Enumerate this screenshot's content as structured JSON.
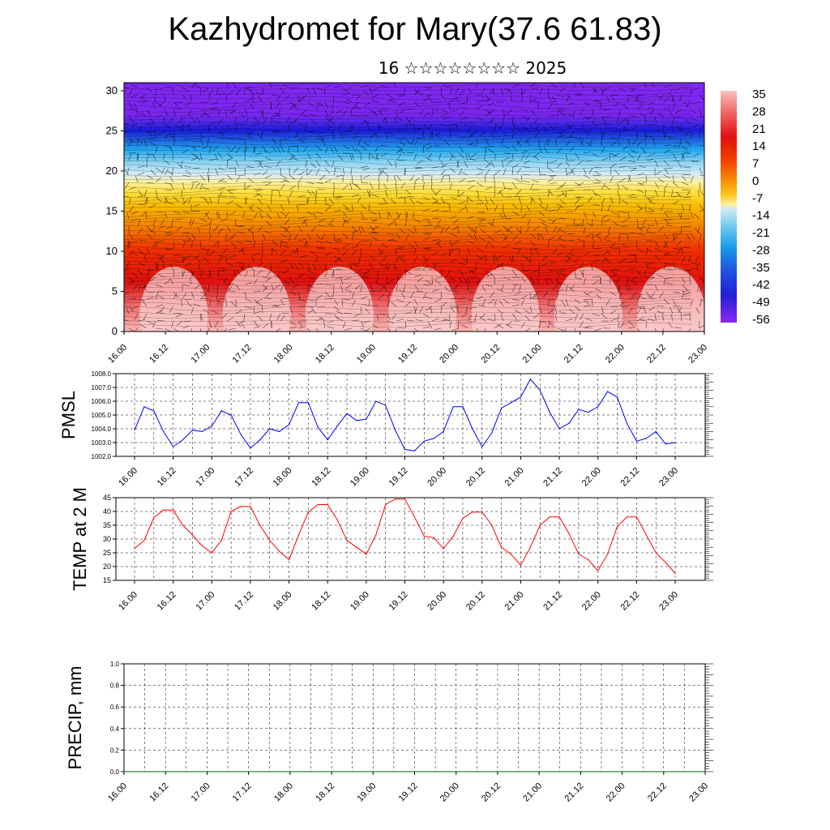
{
  "title": "Kazhydromet for Mary(37.6 61.83)",
  "subtitle": "16 ☆☆☆☆☆☆☆☆ 2025",
  "time_labels": [
    "16.00",
    "16.12",
    "17.00",
    "17.12",
    "18.00",
    "18.12",
    "19.00",
    "19.12",
    "20.00",
    "20.12",
    "21.00",
    "21.12",
    "22.00",
    "22.12",
    "23.00"
  ],
  "colors": {
    "pmsl_line": "#0000ff",
    "temp_line": "#ff0000",
    "precip_line": "#006400"
  },
  "chart_data": [
    {
      "type": "heatmap",
      "title": "",
      "xlabel": "",
      "ylabel": "",
      "x_ticks": [
        "16.00",
        "16.12",
        "17.00",
        "17.12",
        "18.00",
        "18.12",
        "19.00",
        "19.12",
        "20.00",
        "20.12",
        "21.00",
        "21.12",
        "22.00",
        "22.12",
        "23.00"
      ],
      "y_ticks": [
        0,
        5,
        10,
        15,
        20,
        25,
        30
      ],
      "ylim": [
        0,
        30
      ],
      "colorbar": {
        "labels": [
          "35",
          "28",
          "21",
          "14",
          "7",
          "0",
          "-7",
          "-14",
          "-21",
          "-28",
          "-35",
          "-42",
          "-49",
          "-56"
        ],
        "range": [
          -60,
          40
        ]
      },
      "overlay": "wind barbs"
    },
    {
      "type": "line",
      "ylabel": "PMSL",
      "y_ticks": [
        "1002.0",
        "1003.0",
        "1004.0",
        "1005.0",
        "1006.0",
        "1007.0",
        "1008.0"
      ],
      "ylim": [
        1002,
        1008
      ],
      "series": [
        {
          "values": [
            1003.9,
            1005.6,
            1005.3,
            1003.8,
            1002.7,
            1003.2,
            1003.9,
            1003.8,
            1004.2,
            1005.3,
            1005.0,
            1003.6,
            1002.6,
            1003.2,
            1004.0,
            1003.8,
            1004.3,
            1005.9,
            1005.9,
            1004.1,
            1003.2,
            1004.2,
            1005.1,
            1004.6,
            1004.7,
            1006.0,
            1005.7,
            1003.9,
            1002.5,
            1002.4,
            1003.1,
            1003.3,
            1003.8,
            1005.6,
            1005.6,
            1004.0,
            1002.7,
            1003.7,
            1005.5,
            1005.9,
            1006.3,
            1007.6,
            1006.8,
            1005.2,
            1004.0,
            1004.4,
            1005.4,
            1005.2,
            1005.6,
            1006.7,
            1006.3,
            1004.4,
            1003.1,
            1003.3,
            1003.8,
            1002.9,
            1003.0
          ]
        }
      ]
    },
    {
      "type": "line",
      "ylabel": "TEMP at 2 M",
      "y_ticks": [
        "15",
        "20",
        "25",
        "30",
        "35",
        "40",
        "45"
      ],
      "ylim": [
        15,
        45
      ],
      "series": [
        {
          "values": [
            26.5,
            29.5,
            37.8,
            40.5,
            40.5,
            35.0,
            31.5,
            27.5,
            25.0,
            29.5,
            40.0,
            41.8,
            41.8,
            35.0,
            29.5,
            25.5,
            22.5,
            31.5,
            39.8,
            42.5,
            42.5,
            37.0,
            29.5,
            27.0,
            24.5,
            31.5,
            42.5,
            44.5,
            44.5,
            38.0,
            31.0,
            30.5,
            26.5,
            31.0,
            37.5,
            39.8,
            39.8,
            35.0,
            27.0,
            24.5,
            20.5,
            27.0,
            35.0,
            38.0,
            38.0,
            32.0,
            24.5,
            22.5,
            18.5,
            24.5,
            34.5,
            38.0,
            38.0,
            31.5,
            25.0,
            21.5,
            17.5
          ]
        }
      ]
    },
    {
      "type": "line",
      "ylabel": "PRECIP, mm",
      "y_ticks": [
        "0.0",
        "0.2",
        "0.4",
        "0.6",
        "0.8",
        "1.0"
      ],
      "ylim": [
        0,
        1
      ],
      "series": [
        {
          "values": [
            0,
            0,
            0,
            0,
            0,
            0,
            0,
            0,
            0,
            0,
            0,
            0,
            0,
            0,
            0,
            0,
            0,
            0,
            0,
            0,
            0,
            0,
            0,
            0,
            0,
            0,
            0,
            0,
            0,
            0,
            0,
            0,
            0,
            0,
            0,
            0,
            0,
            0,
            0,
            0,
            0,
            0,
            0,
            0,
            0,
            0,
            0,
            0,
            0,
            0,
            0,
            0,
            0,
            0,
            0,
            0,
            0
          ]
        }
      ]
    }
  ]
}
